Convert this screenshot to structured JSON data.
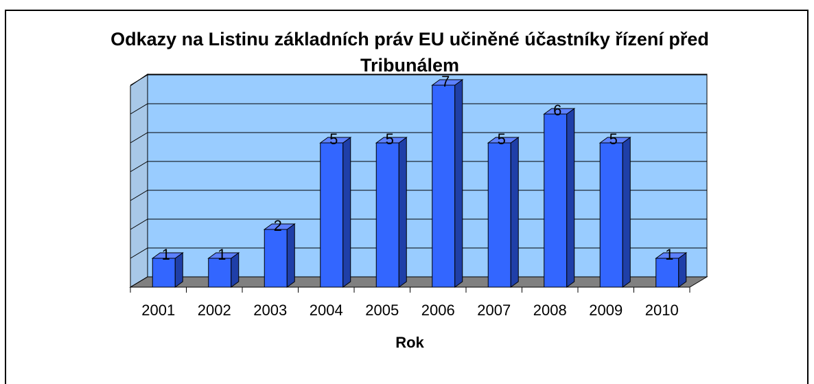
{
  "chart_data": {
    "type": "bar3d",
    "title": "Odkazy na Listinu základních práv EU učiněné účastníky řízení před Tribunálem",
    "x_label": "Rok",
    "categories": [
      "2001",
      "2002",
      "2003",
      "2004",
      "2005",
      "2006",
      "2007",
      "2008",
      "2009",
      "2010"
    ],
    "values": [
      1,
      1,
      2,
      5,
      5,
      7,
      5,
      6,
      5,
      1
    ],
    "color": "#3366ff",
    "ylim": [
      0,
      7
    ],
    "yticks": [
      0,
      1,
      2,
      3,
      4,
      5,
      6,
      7
    ],
    "grid": true
  }
}
